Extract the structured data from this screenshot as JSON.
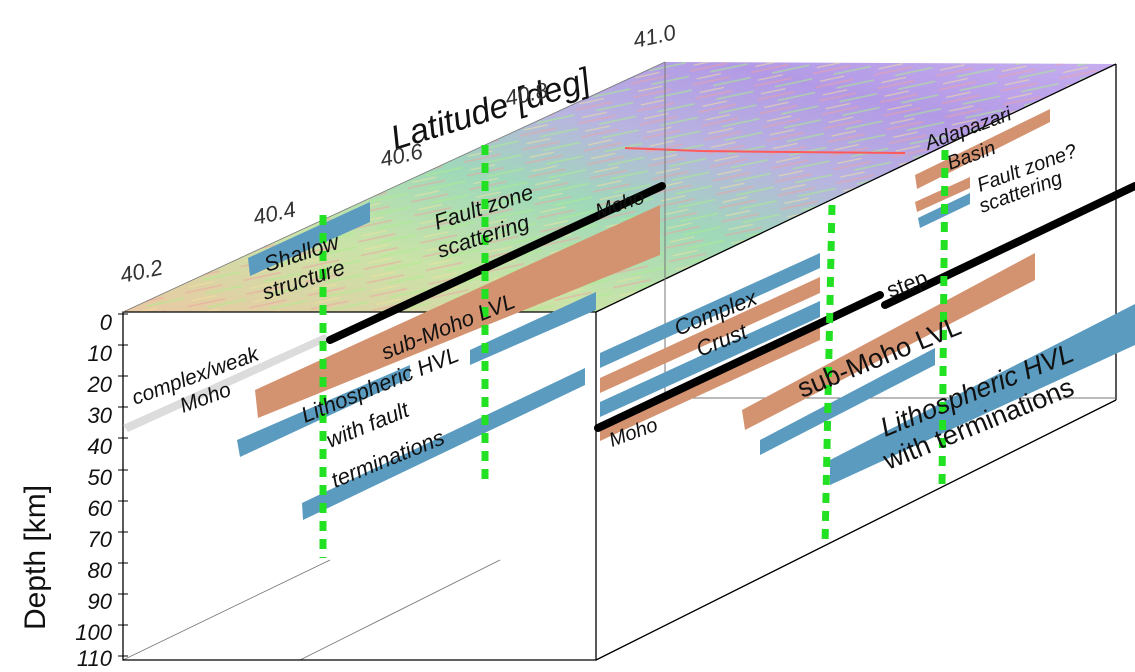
{
  "axes": {
    "latitude_label": "Latitude [deg]",
    "depth_label": "Depth [km]",
    "latitude_ticks": [
      "40.2",
      "40.4",
      "40.6",
      "40.8",
      "41.0"
    ],
    "depth_ticks": [
      "0",
      "10",
      "20",
      "30",
      "40",
      "50",
      "60",
      "70",
      "80",
      "90",
      "100",
      "110"
    ]
  },
  "colors": {
    "hvl": "#5a9bbf",
    "lvl": "#d49370",
    "moho": "#000000",
    "weak_moho": "#d9d9d9",
    "fault_marker": "#22dd22",
    "map_water": "#a68ee0"
  },
  "labels": {
    "shallow": [
      "Shallow",
      "structure"
    ],
    "fault_zone": [
      "Fault zone",
      "scattering"
    ],
    "moho_top": "Moho",
    "weak_moho": [
      "complex/weak",
      "Moho"
    ],
    "sub_moho_left": "sub-Moho LVL",
    "hvl_left": [
      "Lithospheric HVL",
      "with fault",
      "terminations"
    ],
    "adapazari": [
      "Adapazari",
      "Basin"
    ],
    "fault_zone_q": [
      "Fault zone?",
      "scattering"
    ],
    "step": "step",
    "complex_crust": [
      "Complex",
      "Crust"
    ],
    "sub_moho_right": "sub-Moho LVL",
    "hvl_right": [
      "Lithospheric HVL",
      "with terminations"
    ],
    "moho_right": "Moho"
  }
}
